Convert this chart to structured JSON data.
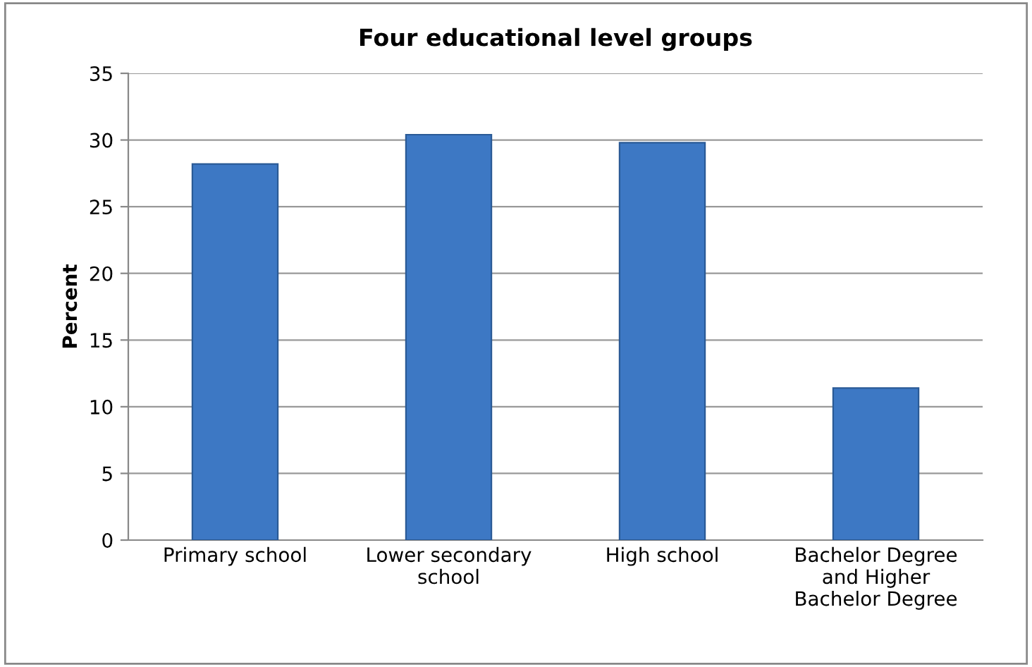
{
  "chart_data": {
    "type": "bar",
    "title": "Four educational level groups",
    "ylabel": "Percent",
    "categories": [
      "Primary school",
      "Lower secondary\nschool",
      "High school",
      "Bachelor Degree\nand Higher\nBachelor Degree"
    ],
    "values": [
      28.2,
      30.4,
      29.8,
      11.4
    ],
    "color": "#3d78c4",
    "ylim": [
      0,
      35
    ],
    "yticks": [
      0,
      5,
      10,
      15,
      20,
      25,
      30,
      35
    ],
    "grid": "y",
    "legend": false
  }
}
